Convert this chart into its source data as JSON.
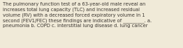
{
  "background_color": "#f0ead8",
  "text_color": "#3a3530",
  "text": "The pulmonary function test of a 63-year-old male reveal an\nincreases total lung capacity (TLC) and increased residual\nvolume (RV) with a decreased forced expiratory volume in 1\nsecond (FEV1/FEC) these findings are indicative of _________. a.\npneumonia b. COPD c. interstitial lung disease d. lung cancer",
  "font_size": 4.85,
  "fig_width": 2.62,
  "fig_height": 0.69,
  "dpi": 100
}
